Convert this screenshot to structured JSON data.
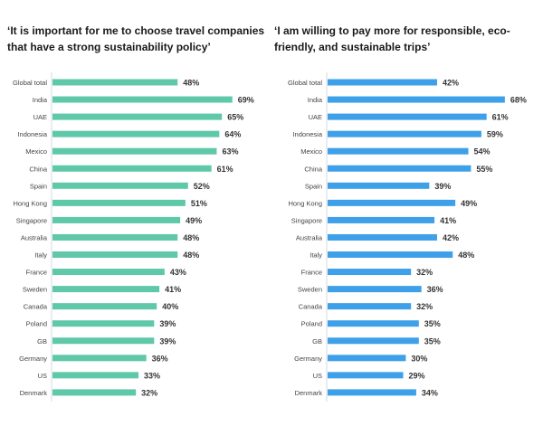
{
  "chart_data": [
    {
      "type": "bar",
      "orientation": "horizontal",
      "title": "‘It is important for me to choose travel companies that have a strong sustainability policy’",
      "color": "#5ec8a8",
      "categories": [
        "Global total",
        "India",
        "UAE",
        "Indonesia",
        "Mexico",
        "China",
        "Spain",
        "Hong Kong",
        "Singapore",
        "Australia",
        "Italy",
        "France",
        "Sweden",
        "Canada",
        "Poland",
        "GB",
        "Germany",
        "US",
        "Denmark"
      ],
      "values": [
        48,
        69,
        65,
        64,
        63,
        61,
        52,
        51,
        49,
        48,
        48,
        43,
        41,
        40,
        39,
        39,
        36,
        33,
        32
      ],
      "unit": "%",
      "xlim": [
        0,
        100
      ],
      "grid": false
    },
    {
      "type": "bar",
      "orientation": "horizontal",
      "title": "‘I am willing to pay more for responsible, eco-friendly, and sustainable trips’",
      "color": "#3ea0e8",
      "categories": [
        "Global total",
        "India",
        "UAE",
        "Indonesia",
        "Mexico",
        "China",
        "Spain",
        "Hong Kong",
        "Singapore",
        "Australia",
        "Italy",
        "France",
        "Sweden",
        "Canada",
        "Poland",
        "GB",
        "Germany",
        "US",
        "Denmark"
      ],
      "values": [
        42,
        68,
        61,
        59,
        54,
        55,
        39,
        49,
        41,
        42,
        48,
        32,
        36,
        32,
        35,
        35,
        30,
        29,
        34
      ],
      "unit": "%",
      "xlim": [
        0,
        100
      ],
      "grid": false
    }
  ]
}
